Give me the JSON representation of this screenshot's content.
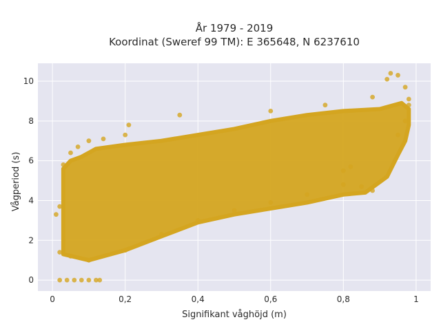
{
  "chart_data": {
    "type": "scatter",
    "title_line1": "År 1979 - 2019",
    "title_line2": "Koordinat (Sweref 99 TM): E 365648, N 6237610",
    "xlabel": "Signifikant våghöjd (m)",
    "ylabel": "Vågperiod (s)",
    "xlim": [
      -0.04,
      1.04
    ],
    "ylim": [
      -0.55,
      10.9
    ],
    "x_ticks": [
      0,
      0.2,
      0.4,
      0.6,
      0.8,
      1
    ],
    "x_tick_labels": [
      "0",
      "0,2",
      "0,4",
      "0,6",
      "0,8",
      "1"
    ],
    "y_ticks": [
      0,
      2,
      4,
      6,
      8,
      10
    ],
    "y_tick_labels": [
      "0",
      "2",
      "4",
      "6",
      "8",
      "10"
    ],
    "grid": true,
    "legend": "none",
    "marker_color": "#d4a520",
    "plot_bg_color": "#e5e5f0",
    "series": [
      {
        "points": [
          [
            0.02,
            0.0
          ],
          [
            0.04,
            0.0
          ],
          [
            0.06,
            0.0
          ],
          [
            0.08,
            0.0
          ],
          [
            0.1,
            0.0
          ],
          [
            0.12,
            0.0
          ],
          [
            0.13,
            0.0
          ],
          [
            0.01,
            3.3
          ],
          [
            0.02,
            1.4
          ],
          [
            0.02,
            3.7
          ],
          [
            0.03,
            5.8
          ],
          [
            0.05,
            6.4
          ],
          [
            0.07,
            6.7
          ],
          [
            0.1,
            7.0
          ],
          [
            0.14,
            7.1
          ],
          [
            0.2,
            7.3
          ],
          [
            0.21,
            7.8
          ],
          [
            0.35,
            8.3
          ],
          [
            0.6,
            8.5
          ],
          [
            0.75,
            8.8
          ],
          [
            0.88,
            9.2
          ],
          [
            0.92,
            10.1
          ],
          [
            0.93,
            10.4
          ],
          [
            0.95,
            10.3
          ],
          [
            0.97,
            9.7
          ],
          [
            0.05,
            1.2
          ],
          [
            0.1,
            1.0
          ],
          [
            0.2,
            1.5
          ],
          [
            0.3,
            2.3
          ],
          [
            0.4,
            3.0
          ],
          [
            0.5,
            3.5
          ],
          [
            0.6,
            3.9
          ],
          [
            0.7,
            4.3
          ],
          [
            0.8,
            4.8
          ],
          [
            0.85,
            4.7
          ],
          [
            0.88,
            4.5
          ],
          [
            0.95,
            7.3
          ],
          [
            0.97,
            8.0
          ],
          [
            0.98,
            8.8
          ],
          [
            0.98,
            9.1
          ],
          [
            0.8,
            5.5
          ],
          [
            0.82,
            5.7
          ]
        ]
      }
    ]
  }
}
